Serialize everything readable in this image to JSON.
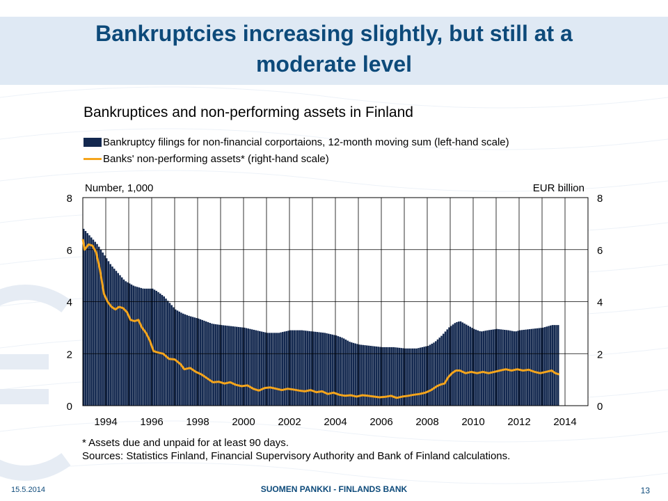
{
  "slide": {
    "title": "Bankruptcies increasing slightly, but still at a moderate level",
    "date": "15.5.2014",
    "bank": "SUOMEN PANKKI - FINLANDS BANK",
    "page": "13",
    "accent_color": "#0d4a7a"
  },
  "chart_data": {
    "type": "bar",
    "title": "Bankruptices and non-performing assets in Finland",
    "left_unit": "Number, 1,000",
    "right_unit": "EUR billion",
    "x_range": [
      1993.0,
      2015.0
    ],
    "ylim_left": [
      0,
      8
    ],
    "ylim_right": [
      0,
      8
    ],
    "y_ticks": [
      "0",
      "2",
      "4",
      "6",
      "8"
    ],
    "x_tick_labels": [
      "1994",
      "1996",
      "1998",
      "2000",
      "2002",
      "2004",
      "2006",
      "2008",
      "2010",
      "2012",
      "2014"
    ],
    "grid": true,
    "legend_position": "top-left",
    "series": [
      {
        "name": "Bankruptcy filings for non-financial corportaions, 12-month moving sum (left-hand scale)",
        "kind": "bar",
        "axis": "left",
        "color": "#13284f",
        "points": [
          [
            1993.0,
            6.8
          ],
          [
            1993.3,
            6.5
          ],
          [
            1993.6,
            6.2
          ],
          [
            1993.9,
            5.8
          ],
          [
            1994.2,
            5.4
          ],
          [
            1994.5,
            5.1
          ],
          [
            1994.8,
            4.8
          ],
          [
            1995.2,
            4.6
          ],
          [
            1995.6,
            4.5
          ],
          [
            1996.0,
            4.5
          ],
          [
            1996.2,
            4.4
          ],
          [
            1996.5,
            4.2
          ],
          [
            1996.8,
            3.9
          ],
          [
            1997.0,
            3.7
          ],
          [
            1997.3,
            3.55
          ],
          [
            1997.6,
            3.45
          ],
          [
            1998.0,
            3.35
          ],
          [
            1998.3,
            3.25
          ],
          [
            1998.6,
            3.15
          ],
          [
            1999.0,
            3.1
          ],
          [
            1999.5,
            3.05
          ],
          [
            2000.0,
            3.0
          ],
          [
            2000.5,
            2.9
          ],
          [
            2001.0,
            2.8
          ],
          [
            2001.5,
            2.8
          ],
          [
            2002.0,
            2.9
          ],
          [
            2002.5,
            2.9
          ],
          [
            2003.0,
            2.85
          ],
          [
            2003.5,
            2.8
          ],
          [
            2004.0,
            2.7
          ],
          [
            2004.3,
            2.6
          ],
          [
            2004.6,
            2.45
          ],
          [
            2005.0,
            2.35
          ],
          [
            2005.5,
            2.3
          ],
          [
            2006.0,
            2.25
          ],
          [
            2006.5,
            2.25
          ],
          [
            2007.0,
            2.2
          ],
          [
            2007.5,
            2.2
          ],
          [
            2008.0,
            2.3
          ],
          [
            2008.3,
            2.45
          ],
          [
            2008.6,
            2.7
          ],
          [
            2008.9,
            3.0
          ],
          [
            2009.2,
            3.2
          ],
          [
            2009.4,
            3.25
          ],
          [
            2009.7,
            3.1
          ],
          [
            2010.0,
            2.95
          ],
          [
            2010.3,
            2.85
          ],
          [
            2010.6,
            2.9
          ],
          [
            2011.0,
            2.95
          ],
          [
            2011.5,
            2.9
          ],
          [
            2011.8,
            2.85
          ],
          [
            2012.0,
            2.9
          ],
          [
            2012.5,
            2.95
          ],
          [
            2013.0,
            3.0
          ],
          [
            2013.4,
            3.1
          ],
          [
            2013.7,
            3.1
          ]
        ]
      },
      {
        "name": "Banks' non-performing assets* (right-hand scale)",
        "kind": "line",
        "axis": "right",
        "color": "#f5a51c",
        "points": [
          [
            1993.0,
            6.4
          ],
          [
            1993.08,
            6.0
          ],
          [
            1993.25,
            6.2
          ],
          [
            1993.42,
            6.15
          ],
          [
            1993.58,
            5.9
          ],
          [
            1993.75,
            5.2
          ],
          [
            1993.92,
            4.3
          ],
          [
            1994.08,
            4.0
          ],
          [
            1994.25,
            3.8
          ],
          [
            1994.42,
            3.7
          ],
          [
            1994.58,
            3.8
          ],
          [
            1994.75,
            3.75
          ],
          [
            1994.92,
            3.6
          ],
          [
            1995.08,
            3.3
          ],
          [
            1995.25,
            3.25
          ],
          [
            1995.42,
            3.3
          ],
          [
            1995.58,
            3.0
          ],
          [
            1995.75,
            2.8
          ],
          [
            1995.92,
            2.5
          ],
          [
            1996.08,
            2.1
          ],
          [
            1996.25,
            2.05
          ],
          [
            1996.5,
            2.0
          ],
          [
            1996.75,
            1.8
          ],
          [
            1997.0,
            1.78
          ],
          [
            1997.25,
            1.6
          ],
          [
            1997.42,
            1.4
          ],
          [
            1997.67,
            1.45
          ],
          [
            1997.92,
            1.3
          ],
          [
            1998.17,
            1.2
          ],
          [
            1998.42,
            1.05
          ],
          [
            1998.67,
            0.9
          ],
          [
            1998.92,
            0.92
          ],
          [
            1999.17,
            0.85
          ],
          [
            1999.42,
            0.9
          ],
          [
            1999.67,
            0.8
          ],
          [
            1999.92,
            0.75
          ],
          [
            2000.17,
            0.78
          ],
          [
            2000.42,
            0.65
          ],
          [
            2000.67,
            0.58
          ],
          [
            2000.92,
            0.68
          ],
          [
            2001.17,
            0.7
          ],
          [
            2001.42,
            0.65
          ],
          [
            2001.67,
            0.6
          ],
          [
            2001.92,
            0.65
          ],
          [
            2002.17,
            0.62
          ],
          [
            2002.42,
            0.58
          ],
          [
            2002.67,
            0.55
          ],
          [
            2002.92,
            0.6
          ],
          [
            2003.17,
            0.52
          ],
          [
            2003.42,
            0.55
          ],
          [
            2003.67,
            0.45
          ],
          [
            2003.92,
            0.5
          ],
          [
            2004.17,
            0.42
          ],
          [
            2004.42,
            0.38
          ],
          [
            2004.67,
            0.4
          ],
          [
            2004.92,
            0.35
          ],
          [
            2005.17,
            0.4
          ],
          [
            2005.42,
            0.38
          ],
          [
            2005.67,
            0.35
          ],
          [
            2005.92,
            0.32
          ],
          [
            2006.17,
            0.34
          ],
          [
            2006.42,
            0.38
          ],
          [
            2006.67,
            0.3
          ],
          [
            2006.92,
            0.35
          ],
          [
            2007.17,
            0.38
          ],
          [
            2007.42,
            0.42
          ],
          [
            2007.67,
            0.45
          ],
          [
            2007.92,
            0.5
          ],
          [
            2008.17,
            0.6
          ],
          [
            2008.42,
            0.75
          ],
          [
            2008.6,
            0.82
          ],
          [
            2008.75,
            0.85
          ],
          [
            2008.92,
            1.1
          ],
          [
            2009.08,
            1.25
          ],
          [
            2009.25,
            1.35
          ],
          [
            2009.42,
            1.35
          ],
          [
            2009.67,
            1.25
          ],
          [
            2009.92,
            1.3
          ],
          [
            2010.17,
            1.25
          ],
          [
            2010.42,
            1.3
          ],
          [
            2010.67,
            1.25
          ],
          [
            2010.92,
            1.3
          ],
          [
            2011.17,
            1.35
          ],
          [
            2011.42,
            1.4
          ],
          [
            2011.67,
            1.35
          ],
          [
            2011.92,
            1.4
          ],
          [
            2012.17,
            1.35
          ],
          [
            2012.42,
            1.38
          ],
          [
            2012.67,
            1.3
          ],
          [
            2012.92,
            1.25
          ],
          [
            2013.17,
            1.3
          ],
          [
            2013.42,
            1.35
          ],
          [
            2013.58,
            1.25
          ],
          [
            2013.75,
            1.2
          ]
        ]
      }
    ],
    "footnote": "* Assets due and unpaid for at least 90 days.",
    "sources": "Sources: Statistics Finland, Financial Supervisory Authority and Bank of Finland calculations."
  }
}
